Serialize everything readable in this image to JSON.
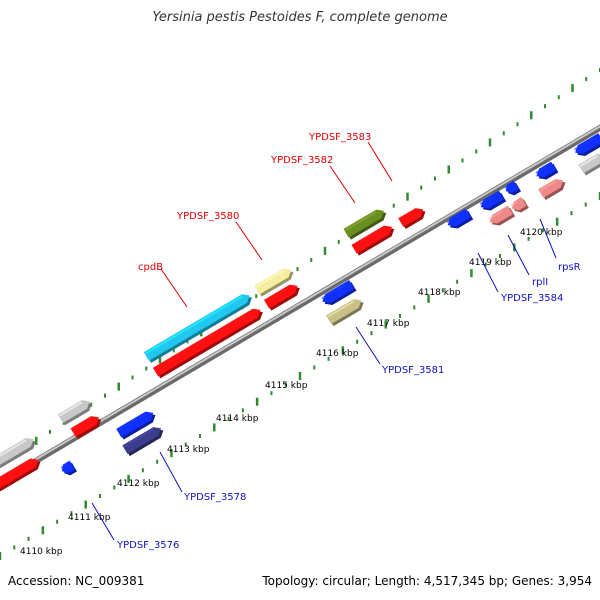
{
  "title": "Yersinia pestis Pestoides F, complete genome",
  "footer": {
    "accession": "Accession: NC_009381",
    "summary": "Topology: circular; Length: 4,517,345 bp; Genes: 3,954"
  },
  "colors": {
    "backbone": "#8a8a8a",
    "tick": "#2e8b2e",
    "label_top": "#e00000",
    "label_bottom": "#1010c0",
    "red": "#ff1010",
    "blue": "#1030ff",
    "grey": "#c8c8c8",
    "cyan": "#20c8f0",
    "yellow": "#f5eea0",
    "olive": "#6b8e23",
    "khaki": "#c8c088",
    "indigo": "#3c3c8c",
    "pink": "#f08888"
  },
  "ticks": [
    "4110 kbp",
    "4111 kbp",
    "4112 kbp",
    "4113 kbp",
    "4114 kbp",
    "4115 kbp",
    "4116 kbp",
    "4117 kbp",
    "4118 kbp",
    "4119 kbp",
    "4120 kbp"
  ],
  "top_labels": [
    "YPDSF_3583",
    "YPDSF_3582",
    "YPDSF_3580",
    "cpdB"
  ],
  "bottom_labels": [
    "YPDSF_3581",
    "YPDSF_3584",
    "rplI",
    "rpsR",
    "YPDSF_3578",
    "YPDSF_3576"
  ]
}
